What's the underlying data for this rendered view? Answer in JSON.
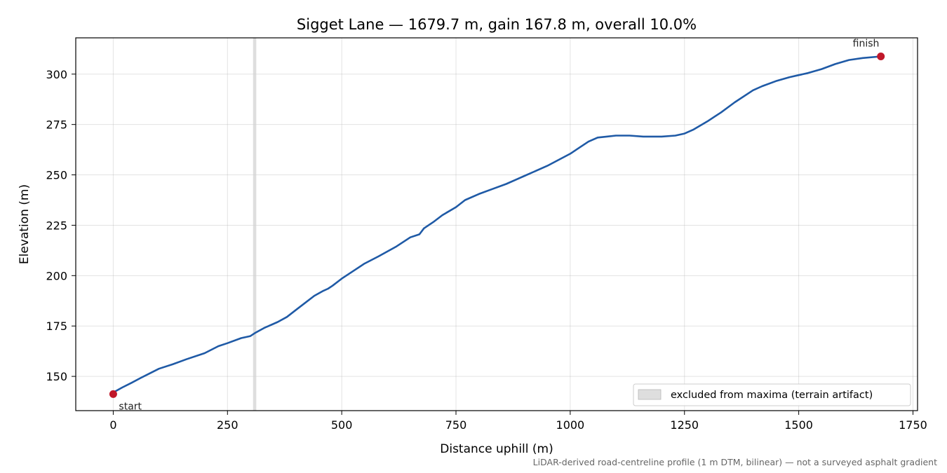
{
  "chart_data": {
    "type": "line",
    "title": "Sigget Lane — 1679.7 m, gain 167.8 m, overall 10.0%",
    "xlabel": "Distance uphill (m)",
    "ylabel": "Elevation (m)",
    "xlim": [
      -82,
      1760
    ],
    "ylim": [
      133,
      318
    ],
    "xticks": [
      0,
      250,
      500,
      750,
      1000,
      1250,
      1500,
      1750
    ],
    "xtick_labels": [
      "0",
      "250",
      "500",
      "750",
      "1000",
      "1250",
      "1500",
      "1750"
    ],
    "yticks": [
      150,
      175,
      200,
      225,
      250,
      275,
      300
    ],
    "ytick_labels": [
      "150",
      "175",
      "200",
      "225",
      "250",
      "275",
      "300"
    ],
    "grid": true,
    "series": [
      {
        "color": "#1f5aa6",
        "x": [
          0,
          20,
          40,
          60,
          80,
          100,
          130,
          160,
          200,
          230,
          250,
          280,
          300,
          310,
          330,
          360,
          380,
          400,
          420,
          440,
          460,
          470,
          480,
          500,
          530,
          550,
          580,
          620,
          650,
          670,
          680,
          700,
          720,
          750,
          770,
          800,
          830,
          860,
          900,
          950,
          1000,
          1020,
          1040,
          1060,
          1080,
          1100,
          1130,
          1160,
          1200,
          1230,
          1250,
          1270,
          1300,
          1330,
          1360,
          1400,
          1420,
          1450,
          1480,
          1500,
          1520,
          1550,
          1580,
          1610,
          1640,
          1679.7
        ],
        "y": [
          142,
          144.5,
          146.8,
          149.2,
          151.5,
          153.8,
          156,
          158.5,
          161.5,
          165,
          166.5,
          169,
          170,
          171.5,
          174,
          177,
          179.5,
          183,
          186.5,
          190,
          192.5,
          193.5,
          195,
          198.5,
          203,
          206,
          209.5,
          214.5,
          219,
          220.5,
          223.5,
          226.5,
          230,
          234,
          237.5,
          240.5,
          243,
          245.5,
          249.5,
          254.5,
          260.5,
          263.5,
          266.5,
          268.5,
          269,
          269.5,
          269.5,
          269,
          269,
          269.5,
          270.5,
          272.5,
          276.5,
          281,
          286,
          292,
          294,
          296.5,
          298.5,
          299.5,
          300.5,
          302.5,
          305,
          307,
          308,
          308.8
        ]
      }
    ],
    "markers": [
      {
        "x": 0,
        "y": 141.2,
        "label": "start",
        "color": "#c0182a"
      },
      {
        "x": 1679.7,
        "y": 308.8,
        "label": "finish",
        "color": "#c0182a"
      }
    ],
    "excluded_band": {
      "x0": 306,
      "x1": 313,
      "color": "#d0d0d0"
    },
    "legend": {
      "position": "bottom-right",
      "entries": [
        "excluded from maxima (terrain artifact)"
      ]
    },
    "footnote": "LiDAR-derived road-centreline profile (1 m DTM, bilinear) — not a surveyed asphalt gradient"
  }
}
